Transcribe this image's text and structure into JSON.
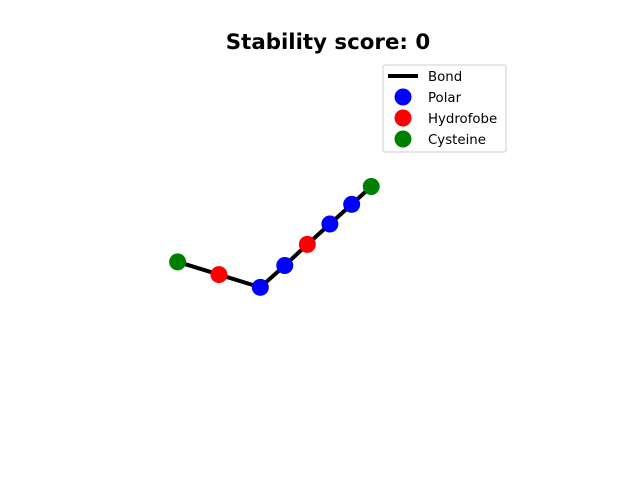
{
  "chart_data": {
    "type": "line",
    "title": "Stability score: 0",
    "xlabel": "",
    "ylabel": "",
    "axes_visible": false,
    "grid": false,
    "legend_position": "top-right",
    "xlim": [
      0,
      10
    ],
    "ylim": [
      0,
      10
    ],
    "bond": {
      "name": "Bond",
      "color": "#000000"
    },
    "series": [
      {
        "name": "Polar",
        "color": "#0000ff"
      },
      {
        "name": "Hydrofobe",
        "color": "#ff0000"
      },
      {
        "name": "Cysteine",
        "color": "#008000"
      }
    ],
    "residues": [
      {
        "x": 1.0,
        "y": 4.4,
        "type": "Cysteine"
      },
      {
        "x": 2.1,
        "y": 4.05,
        "type": "Hydrofobe"
      },
      {
        "x": 3.2,
        "y": 3.7,
        "type": "Polar"
      },
      {
        "x": 3.85,
        "y": 4.3,
        "type": "Polar"
      },
      {
        "x": 4.45,
        "y": 4.88,
        "type": "Hydrofobe"
      },
      {
        "x": 5.05,
        "y": 5.44,
        "type": "Polar"
      },
      {
        "x": 5.63,
        "y": 5.98,
        "type": "Polar"
      },
      {
        "x": 6.15,
        "y": 6.47,
        "type": "Cysteine"
      }
    ]
  }
}
